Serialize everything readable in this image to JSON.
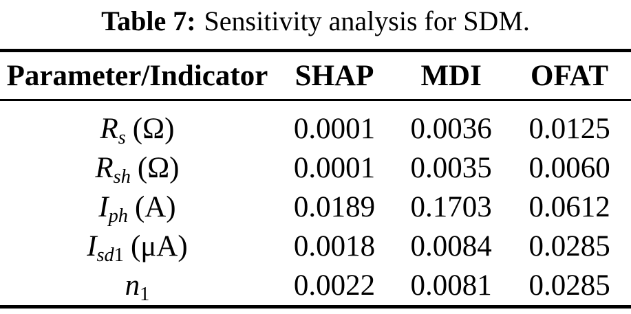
{
  "title": {
    "label": "Table 7:",
    "caption": "Sensitivity analysis for SDM."
  },
  "colors": {
    "text": "#000000",
    "background": "#ffffff",
    "rule": "#000000"
  },
  "table": {
    "headers": [
      "Parameter/Indicator",
      "SHAP",
      "MDI",
      "OFAT"
    ],
    "rows": [
      {
        "param": {
          "base": "R",
          "sub_italic": "s",
          "sub_upright": "",
          "unit": "(Ω)"
        },
        "values": [
          "0.0001",
          "0.0036",
          "0.0125"
        ]
      },
      {
        "param": {
          "base": "R",
          "sub_italic": "sh",
          "sub_upright": "",
          "unit": "(Ω)"
        },
        "values": [
          "0.0001",
          "0.0035",
          "0.0060"
        ]
      },
      {
        "param": {
          "base": "I",
          "sub_italic": "ph",
          "sub_upright": "",
          "unit": "(A)"
        },
        "values": [
          "0.0189",
          "0.1703",
          "0.0612"
        ]
      },
      {
        "param": {
          "base": "I",
          "sub_italic": "sd",
          "sub_upright": "1",
          "unit": "(μA)"
        },
        "values": [
          "0.0018",
          "0.0084",
          "0.0285"
        ]
      },
      {
        "param": {
          "base": "n",
          "sub_italic": "",
          "sub_upright": "1",
          "unit": ""
        },
        "values": [
          "0.0022",
          "0.0081",
          "0.0285"
        ]
      }
    ]
  }
}
